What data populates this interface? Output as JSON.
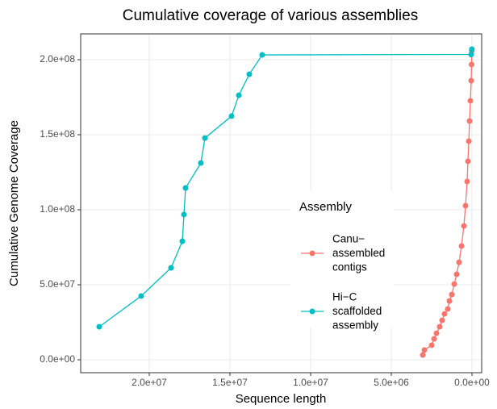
{
  "chart_data": {
    "type": "line",
    "title": "Cumulative coverage of various assemblies",
    "x_label": "Sequence length",
    "y_label": "Cumulative Genome Coverage",
    "legend_title": "Assembly",
    "legend_position": "inside-right",
    "grid": true,
    "x_reversed": true,
    "xlim": [
      24250000,
      -600000
    ],
    "ylim": [
      -8600000,
      217200000
    ],
    "xticks": [
      {
        "value": 20000000,
        "label": "2.0e+07"
      },
      {
        "value": 15000000,
        "label": "1.5e+07"
      },
      {
        "value": 10000000,
        "label": "1.0e+07"
      },
      {
        "value": 5000000,
        "label": "5.0e+06"
      },
      {
        "value": 0,
        "label": "0.0e+00"
      }
    ],
    "yticks": [
      {
        "value": 0,
        "label": "0.0e+00"
      },
      {
        "value": 50000000,
        "label": "5.0e+07"
      },
      {
        "value": 100000000,
        "label": "1.0e+08"
      },
      {
        "value": 150000000,
        "label": "1.5e+08"
      },
      {
        "value": 200000000,
        "label": "2.0e+08"
      }
    ],
    "series": [
      {
        "name": "Canu−\nassembled\ncontigs",
        "color": "#F8766D",
        "x": [
          3050000,
          2950000,
          2500000,
          2350000,
          2200000,
          2000000,
          1850000,
          1700000,
          1500000,
          1400000,
          1250000,
          1100000,
          950000,
          800000,
          650000,
          500000,
          400000,
          300000,
          250000,
          200000,
          150000,
          100000,
          50000,
          25000,
          10000
        ],
        "values": [
          3200000,
          6500000,
          9700000,
          14000000,
          17700000,
          22000000,
          26300000,
          30600000,
          33900000,
          39200000,
          43500000,
          50500000,
          57000000,
          65000000,
          75800000,
          89200000,
          102700000,
          118800000,
          132300000,
          145700000,
          159100000,
          172600000,
          186000000,
          196800000,
          206000000
        ]
      },
      {
        "name": "Hi−C\nscaffolded\nassembly",
        "color": "#00BFC4",
        "x": [
          23100000,
          20500000,
          18650000,
          17950000,
          17850000,
          17750000,
          16800000,
          16550000,
          14900000,
          14450000,
          13800000,
          13000000,
          50000,
          10000
        ],
        "values": [
          22000000,
          42500000,
          61300000,
          79000000,
          96800000,
          114500000,
          131200000,
          147800000,
          162400000,
          176300000,
          190300000,
          203200000,
          203500000,
          207000000
        ]
      }
    ]
  }
}
